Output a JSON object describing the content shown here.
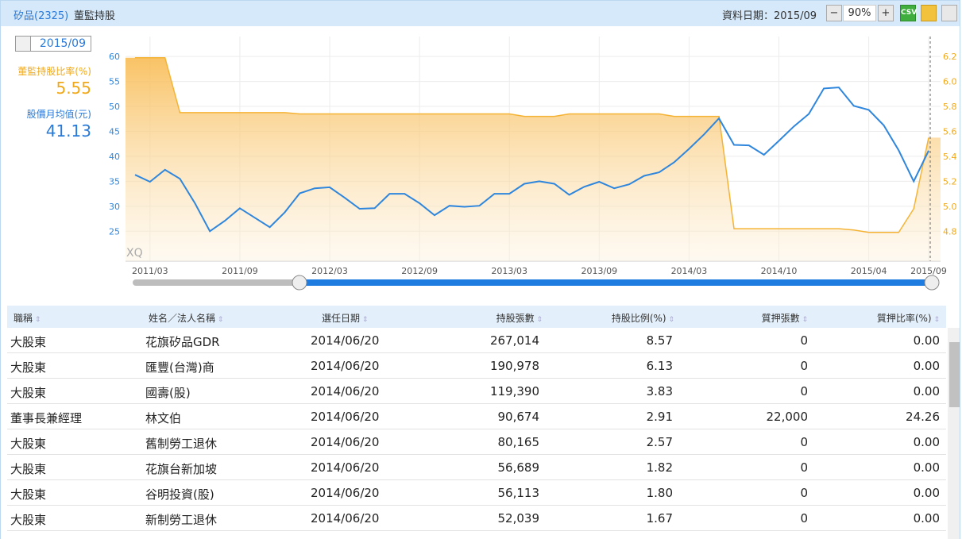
{
  "header": {
    "stock": "矽品(2325)",
    "title": "董監持股",
    "date_label": "資料日期：2015/09",
    "zoom": "90%",
    "csv": "CSV"
  },
  "selector": {
    "period": "2015/09"
  },
  "chart_data": {
    "type": "line",
    "watermark": "XQ",
    "categories": [
      null,
      "2011/03",
      null,
      null,
      null,
      null,
      null,
      "2011/09",
      null,
      null,
      null,
      null,
      null,
      "2012/03",
      null,
      null,
      null,
      null,
      null,
      "2012/09",
      null,
      null,
      null,
      null,
      null,
      "2013/03",
      null,
      null,
      null,
      null,
      null,
      "2013/09",
      null,
      null,
      null,
      null,
      null,
      "2014/03",
      null,
      null,
      null,
      null,
      null,
      "2014/10",
      null,
      null,
      null,
      null,
      null,
      "2015/04",
      null,
      null,
      null,
      "2015/09"
    ],
    "series": [
      {
        "name": "股價月均值(元)",
        "color": "#2f86dd",
        "values": [
          36.3,
          34.9,
          37.3,
          35.5,
          30.6,
          25.0,
          27.1,
          29.6,
          27.7,
          25.8,
          28.8,
          32.6,
          33.6,
          33.8,
          31.7,
          29.5,
          29.6,
          32.5,
          32.5,
          30.6,
          28.2,
          30.1,
          29.9,
          30.1,
          32.5,
          32.5,
          34.5,
          35.0,
          34.5,
          32.3,
          33.9,
          34.9,
          33.6,
          34.4,
          36.1,
          36.8,
          38.8,
          41.5,
          44.4,
          47.6,
          42.3,
          42.2,
          40.3,
          43.1,
          46.0,
          48.5,
          53.6,
          53.8,
          50.1,
          49.3,
          46.2,
          41.2,
          35.0,
          41.13
        ]
      },
      {
        "name": "董監持股比率(%)",
        "color": "#f5b335",
        "axis": "y2",
        "values": [
          6.19,
          6.19,
          6.19,
          5.75,
          5.75,
          5.75,
          5.75,
          5.75,
          5.75,
          5.75,
          5.75,
          5.74,
          5.74,
          5.74,
          5.74,
          5.74,
          5.74,
          5.74,
          5.74,
          5.74,
          5.74,
          5.74,
          5.74,
          5.74,
          5.74,
          5.74,
          5.72,
          5.72,
          5.72,
          5.74,
          5.74,
          5.74,
          5.74,
          5.74,
          5.74,
          5.74,
          5.72,
          5.72,
          5.72,
          5.72,
          4.82,
          4.82,
          4.82,
          4.82,
          4.82,
          4.82,
          4.82,
          4.82,
          4.81,
          4.79,
          4.79,
          4.79,
          4.98,
          5.55
        ]
      }
    ],
    "ylim": [
      19,
      64
    ],
    "yticks": [
      25,
      30,
      35,
      40,
      45,
      50,
      55,
      60
    ],
    "y2lim": [
      4.56,
      6.36
    ],
    "y2ticks": [
      4.8,
      {
        "value": 5,
        "label": "5.0"
      },
      5.2,
      5.4,
      5.6,
      5.8,
      {
        "value": 6,
        "label": "6.0"
      },
      6.2
    ],
    "grid": true
  },
  "table": {
    "columns": [
      "職稱",
      "姓名／法人名稱",
      "選任日期",
      "持股張數",
      "持股比例(%)",
      "質押張數",
      "質押比率(%)"
    ],
    "rows": [
      [
        "大股東",
        "花旗矽品GDR",
        "2014/06/20",
        "267,014",
        "8.57",
        "0",
        "0.00"
      ],
      [
        "大股東",
        "匯豐(台灣)商",
        "2014/06/20",
        "190,978",
        "6.13",
        "0",
        "0.00"
      ],
      [
        "大股東",
        "國壽(股)",
        "2014/06/20",
        "119,390",
        "3.83",
        "0",
        "0.00"
      ],
      [
        "董事長兼經理",
        "林文伯",
        "2014/06/20",
        "90,674",
        "2.91",
        "22,000",
        "24.26"
      ],
      [
        "大股東",
        "舊制勞工退休",
        "2014/06/20",
        "80,165",
        "2.57",
        "0",
        "0.00"
      ],
      [
        "大股東",
        "花旗台新加坡",
        "2014/06/20",
        "56,689",
        "1.82",
        "0",
        "0.00"
      ],
      [
        "大股東",
        "谷明投資(股)",
        "2014/06/20",
        "56,113",
        "1.80",
        "0",
        "0.00"
      ],
      [
        "大股東",
        "新制勞工退休",
        "2014/06/20",
        "52,039",
        "1.67",
        "0",
        "0.00"
      ]
    ]
  }
}
